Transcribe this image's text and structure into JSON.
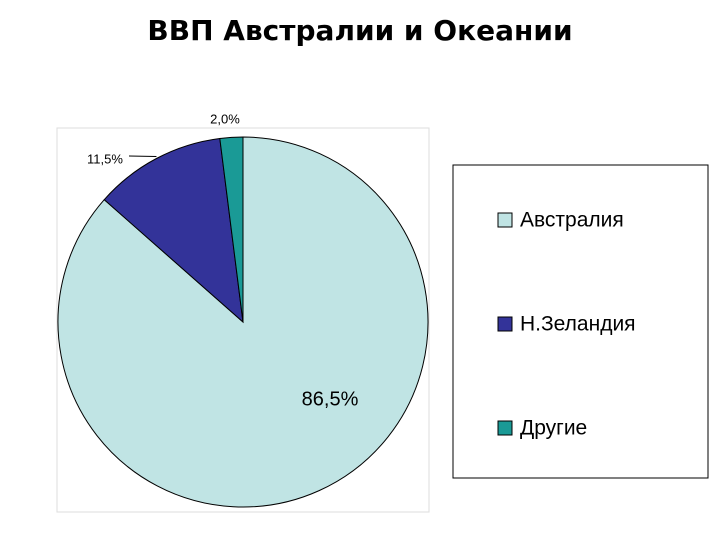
{
  "chart_data": {
    "type": "pie",
    "title": "ВВП Австралии и Океании",
    "categories": [
      "Австралия",
      "Н.Зеландия",
      "Другие"
    ],
    "values": [
      86.5,
      11.5,
      2.0
    ],
    "value_labels": [
      "86,5%",
      "11,5%",
      "2,0%"
    ],
    "colors": [
      "#c0e4e4",
      "#333399",
      "#1a9a96"
    ],
    "legend": "right"
  }
}
